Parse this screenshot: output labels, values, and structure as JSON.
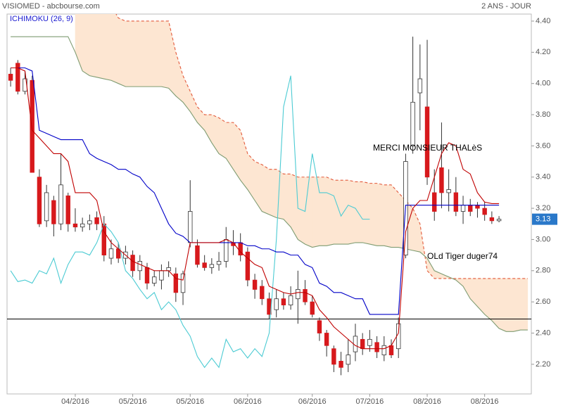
{
  "chart_data": {
    "type": "candlestick",
    "title": "VISIOMED - abcbourse.com",
    "period": "2 ANS - JOUR",
    "indicator": "ICHIMOKU (26, 9)",
    "annotations": [
      "MERCI MONSIEUR THALèS",
      "OLd Tiger duger74"
    ],
    "categories": [
      null,
      null,
      null,
      null,
      null,
      null,
      null,
      null,
      null,
      "04/2016",
      null,
      null,
      null,
      null,
      null,
      null,
      null,
      "05/2016",
      null,
      null,
      null,
      null,
      null,
      null,
      null,
      "05/2016",
      null,
      null,
      null,
      null,
      null,
      null,
      null,
      "06/2016",
      null,
      null,
      null,
      null,
      null,
      null,
      null,
      null,
      "06/2016",
      null,
      null,
      null,
      null,
      null,
      null,
      null,
      "07/2016",
      null,
      null,
      null,
      null,
      null,
      null,
      null,
      "08/2016",
      null,
      null,
      null,
      null,
      null,
      null,
      null,
      "08/2016",
      null,
      null,
      null,
      null,
      null,
      null
    ],
    "open": [
      4.06,
      4.13,
      3.95,
      4.02,
      3.4,
      3.12,
      3.25,
      3.1,
      3.28,
      3.1,
      3.08,
      3.1,
      3.14,
      3.1,
      2.88,
      2.94,
      2.88,
      2.9,
      2.8,
      2.82,
      2.72,
      2.74,
      2.8,
      2.78,
      2.66,
      2.98,
      2.96,
      2.85,
      2.82,
      2.84,
      2.86,
      2.98,
      2.98,
      2.92,
      2.74,
      2.7,
      2.62,
      2.55,
      2.62,
      2.58,
      2.62,
      2.68,
      2.6,
      2.48,
      2.4,
      2.3,
      2.22,
      2.2,
      2.28,
      2.36,
      2.32,
      2.34,
      2.26,
      2.32,
      2.3,
      2.9,
      3.6,
      3.94,
      3.85,
      3.3,
      3.46,
      3.3,
      3.3,
      3.18,
      3.22,
      3.22,
      3.2,
      3.14,
      3.12,
      null,
      null,
      null,
      null
    ],
    "high": [
      4.1,
      4.15,
      4.08,
      4.05,
      3.45,
      3.35,
      3.28,
      3.55,
      3.3,
      3.2,
      3.14,
      3.16,
      3.18,
      3.15,
      3.0,
      2.98,
      2.96,
      2.93,
      2.9,
      2.85,
      2.8,
      2.84,
      2.86,
      2.82,
      2.8,
      3.38,
      3.0,
      2.9,
      2.88,
      2.92,
      3.08,
      3.06,
      3.04,
      2.95,
      2.78,
      2.74,
      2.66,
      2.68,
      2.66,
      2.7,
      2.8,
      2.74,
      2.64,
      2.5,
      2.42,
      2.32,
      2.28,
      2.36,
      2.46,
      2.4,
      2.42,
      2.38,
      2.38,
      2.36,
      2.5,
      3.55,
      4.3,
      4.25,
      4.28,
      3.45,
      3.75,
      3.45,
      3.4,
      3.28,
      3.26,
      3.24,
      3.24,
      3.18,
      3.15,
      null,
      null,
      null,
      null
    ],
    "low": [
      3.98,
      3.93,
      3.93,
      3.43,
      3.08,
      3.08,
      3.02,
      3.06,
      3.05,
      3.05,
      3.05,
      3.06,
      3.06,
      2.86,
      2.84,
      2.85,
      2.84,
      2.76,
      2.74,
      2.68,
      2.7,
      2.68,
      2.76,
      2.6,
      2.58,
      2.95,
      2.82,
      2.8,
      2.78,
      2.8,
      2.82,
      2.9,
      2.86,
      2.7,
      2.62,
      2.58,
      2.49,
      2.5,
      2.55,
      2.55,
      2.46,
      2.58,
      2.5,
      2.35,
      2.25,
      2.15,
      2.13,
      2.15,
      2.22,
      2.26,
      2.28,
      2.24,
      2.22,
      2.24,
      2.24,
      2.88,
      3.55,
      3.7,
      3.35,
      3.12,
      3.2,
      3.18,
      3.15,
      3.1,
      3.15,
      3.14,
      3.12,
      3.1,
      3.11,
      null,
      null,
      null,
      null
    ],
    "close": [
      4.02,
      3.95,
      4.03,
      3.43,
      3.1,
      3.3,
      3.1,
      3.35,
      3.1,
      3.08,
      3.1,
      3.12,
      3.1,
      2.9,
      2.94,
      2.88,
      2.92,
      2.8,
      2.86,
      2.72,
      2.76,
      2.8,
      2.82,
      2.66,
      2.78,
      3.18,
      2.84,
      2.82,
      2.84,
      2.86,
      3.0,
      2.96,
      2.9,
      2.74,
      2.68,
      2.62,
      2.52,
      2.62,
      2.58,
      2.64,
      2.68,
      2.6,
      2.52,
      2.4,
      2.32,
      2.2,
      2.18,
      2.26,
      2.38,
      2.3,
      2.36,
      2.28,
      2.32,
      2.26,
      2.46,
      3.5,
      3.88,
      4.03,
      3.4,
      3.18,
      3.3,
      3.32,
      3.18,
      3.22,
      3.18,
      3.2,
      3.16,
      3.12,
      3.13,
      null,
      null,
      null,
      null
    ],
    "up_color": "#ffffff",
    "down_color": "#d7191c",
    "wick_color": "#333333",
    "lines": [
      {
        "color": "#c00000",
        "dashed": false,
        "values": [
          4.1,
          4.1,
          4.08,
          3.7,
          3.65,
          3.6,
          3.55,
          3.55,
          3.5,
          3.3,
          3.3,
          3.3,
          3.25,
          3.05,
          2.98,
          2.94,
          2.9,
          2.86,
          2.84,
          2.82,
          2.8,
          2.8,
          2.8,
          2.75,
          2.74,
          2.98,
          2.98,
          2.98,
          2.98,
          2.98,
          3.0,
          2.98,
          2.92,
          2.88,
          2.84,
          2.82,
          2.7,
          2.68,
          2.66,
          2.65,
          2.66,
          2.66,
          2.64,
          2.55,
          2.5,
          2.44,
          2.4,
          2.36,
          2.32,
          2.3,
          2.3,
          2.3,
          2.3,
          2.32,
          2.4,
          3.05,
          3.2,
          3.25,
          3.25,
          3.4,
          3.55,
          3.62,
          3.6,
          3.45,
          3.42,
          3.3,
          3.24,
          3.23,
          3.23,
          null,
          null,
          null,
          null
        ]
      },
      {
        "color": "#0000c8",
        "dashed": false,
        "values": [
          4.1,
          4.1,
          4.1,
          4.08,
          3.7,
          3.68,
          3.66,
          3.64,
          3.64,
          3.64,
          3.64,
          3.55,
          3.52,
          3.5,
          3.48,
          3.45,
          3.45,
          3.42,
          3.4,
          3.34,
          3.3,
          3.2,
          3.1,
          3.04,
          3.02,
          2.98,
          2.98,
          2.98,
          2.98,
          2.98,
          2.98,
          2.98,
          2.98,
          2.96,
          2.96,
          2.94,
          2.94,
          2.92,
          2.92,
          2.9,
          2.9,
          2.84,
          2.82,
          2.72,
          2.7,
          2.66,
          2.66,
          2.64,
          2.62,
          2.62,
          2.52,
          2.52,
          2.52,
          2.52,
          2.52,
          3.22,
          3.22,
          3.22,
          3.22,
          3.22,
          3.22,
          3.22,
          3.22,
          3.22,
          3.22,
          3.22,
          3.22,
          3.22,
          3.22,
          null,
          null,
          null,
          null
        ]
      },
      {
        "color": "#4ccbd3",
        "dashed": false,
        "values": [
          2.8,
          2.73,
          2.74,
          2.72,
          2.8,
          2.78,
          2.88,
          2.72,
          2.84,
          2.92,
          2.92,
          2.9,
          2.98,
          3.1,
          3.05,
          2.98,
          2.8,
          2.75,
          2.68,
          2.62,
          2.66,
          2.55,
          2.6,
          2.55,
          2.45,
          2.38,
          2.25,
          2.18,
          2.24,
          2.18,
          2.36,
          2.28,
          2.3,
          2.24,
          2.3,
          2.25,
          2.4,
          3.0,
          3.85,
          4.05,
          3.2,
          3.18,
          3.55,
          3.3,
          3.3,
          3.28,
          3.15,
          3.22,
          3.2,
          3.13,
          3.13,
          null,
          null,
          null,
          null,
          null,
          null,
          null,
          null,
          null,
          null,
          null,
          null,
          null,
          null,
          null,
          null,
          null,
          null,
          null,
          null,
          null,
          null
        ]
      },
      {
        "color": "#e2583a",
        "dashed": true,
        "values": [
          null,
          null,
          null,
          null,
          null,
          null,
          null,
          null,
          null,
          4.5,
          4.5,
          4.5,
          4.5,
          4.5,
          4.5,
          4.42,
          4.4,
          4.4,
          4.4,
          4.4,
          4.4,
          4.4,
          4.4,
          4.2,
          4.05,
          3.95,
          3.85,
          3.8,
          3.8,
          3.78,
          3.75,
          3.75,
          3.7,
          3.55,
          3.5,
          3.48,
          3.45,
          3.45,
          3.42,
          3.42,
          3.4,
          3.4,
          3.4,
          3.4,
          3.4,
          3.38,
          3.38,
          3.38,
          3.37,
          3.37,
          3.36,
          3.36,
          3.35,
          3.35,
          3.3,
          3.25,
          3.2,
          3.1,
          2.8,
          2.75,
          2.75,
          2.75,
          2.75,
          2.75,
          2.75,
          2.75,
          2.75,
          2.75,
          2.75,
          2.75,
          2.75,
          2.75,
          2.75
        ]
      },
      {
        "color": "#7f9c72",
        "dashed": false,
        "values": [
          4.3,
          4.3,
          4.3,
          4.3,
          4.3,
          4.3,
          4.3,
          4.3,
          4.3,
          4.2,
          4.08,
          4.05,
          4.04,
          4.03,
          4.02,
          4.0,
          3.98,
          3.98,
          3.98,
          3.98,
          3.98,
          3.98,
          3.97,
          3.92,
          3.88,
          3.82,
          3.75,
          3.7,
          3.62,
          3.55,
          3.52,
          3.45,
          3.38,
          3.32,
          3.25,
          3.18,
          3.16,
          3.14,
          3.13,
          3.08,
          3.0,
          2.97,
          2.95,
          2.96,
          2.96,
          2.97,
          2.97,
          2.97,
          2.98,
          2.98,
          2.97,
          2.96,
          2.96,
          2.95,
          2.95,
          2.94,
          2.93,
          2.92,
          2.88,
          2.8,
          2.78,
          2.76,
          2.74,
          2.7,
          2.62,
          2.57,
          2.52,
          2.48,
          2.43,
          2.41,
          2.41,
          2.42,
          2.42
        ]
      }
    ],
    "cloud_color": "#fde6d2",
    "hline": 2.49,
    "last_price": 3.13,
    "last_price_color": "#2a78c9",
    "ylim": [
      2.01,
      4.445
    ],
    "yticks": [
      {
        "value": 2.2,
        "label": "2.20"
      },
      {
        "value": 2.4,
        "label": "2.40"
      },
      {
        "value": 2.6,
        "label": "2.60"
      },
      {
        "value": 2.8,
        "label": "2.80"
      },
      {
        "value": 3.0,
        "label": "3.00"
      },
      {
        "value": 3.2,
        "label": "3.20"
      },
      {
        "value": 3.4,
        "label": "3.40"
      },
      {
        "value": 3.6,
        "label": "3.60"
      },
      {
        "value": 3.8,
        "label": "3.80"
      },
      {
        "value": 4.0,
        "label": "4.00"
      },
      {
        "value": 4.2,
        "label": "4.20"
      },
      {
        "value": 4.4,
        "label": "4.40"
      }
    ],
    "grid": false
  }
}
